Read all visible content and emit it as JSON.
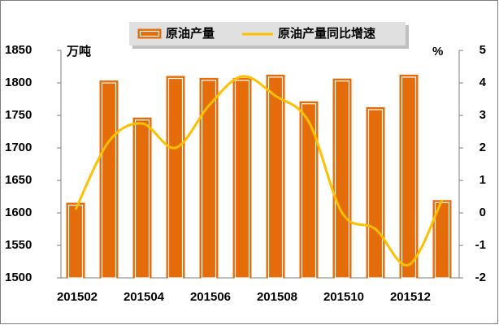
{
  "chart_data": {
    "type": "bar",
    "ylabel": "万吨",
    "y2label": "%",
    "categories": [
      "201502",
      null,
      "201504",
      null,
      "201506",
      null,
      "201508",
      null,
      "201510",
      null,
      "201512",
      null
    ],
    "series": [
      {
        "name": "原油产量",
        "color": "#e46c0a",
        "values": [
          1615,
          1803,
          1746,
          1810,
          1807,
          1807,
          1812,
          1771,
          1806,
          1762,
          1812,
          1619
        ]
      },
      {
        "name": "原油产量同比增速",
        "color": "#ffc000",
        "axis": "y2",
        "values": [
          0.1,
          2.2,
          2.75,
          2.0,
          3.3,
          4.2,
          3.6,
          2.8,
          0.0,
          -0.5,
          -1.6,
          0.4
        ]
      }
    ],
    "ylim": [
      1500,
      1850
    ],
    "yticks": [
      1500,
      1550,
      1600,
      1650,
      1700,
      1750,
      1800,
      1850
    ],
    "y2lim": [
      -2,
      5
    ],
    "y2ticks": [
      -2,
      -1,
      0,
      1,
      2,
      3,
      4,
      5
    ]
  }
}
